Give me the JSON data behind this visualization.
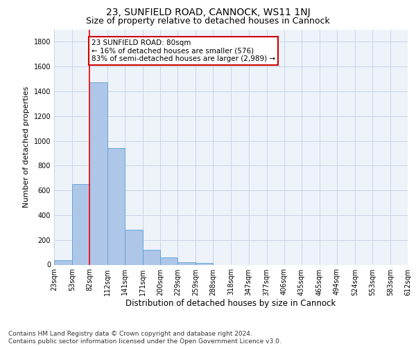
{
  "title": "23, SUNFIELD ROAD, CANNOCK, WS11 1NJ",
  "subtitle": "Size of property relative to detached houses in Cannock",
  "xlabel": "Distribution of detached houses by size in Cannock",
  "ylabel": "Number of detached properties",
  "footer_line1": "Contains HM Land Registry data © Crown copyright and database right 2024.",
  "footer_line2": "Contains public sector information licensed under the Open Government Licence v3.0.",
  "bar_edges": [
    23,
    53,
    82,
    112,
    141,
    171,
    200,
    229,
    259,
    288,
    318,
    347,
    377,
    406,
    435,
    465,
    494,
    524,
    553,
    583,
    612
  ],
  "bar_values": [
    35,
    650,
    1475,
    940,
    280,
    120,
    60,
    22,
    15,
    0,
    0,
    0,
    0,
    0,
    0,
    0,
    0,
    0,
    0,
    0
  ],
  "bar_color": "#aec6e8",
  "bar_edge_color": "#5a9fd4",
  "red_line_x": 82,
  "ylim": [
    0,
    1900
  ],
  "yticks": [
    0,
    200,
    400,
    600,
    800,
    1000,
    1200,
    1400,
    1600,
    1800
  ],
  "annotation_text": "23 SUNFIELD ROAD: 80sqm\n← 16% of detached houses are smaller (576)\n83% of semi-detached houses are larger (2,989) →",
  "annotation_box_color": "#ffffff",
  "annotation_box_edgecolor": "#cc0000",
  "background_color": "#eef3fa",
  "grid_color": "#c8d4e8",
  "title_fontsize": 10,
  "subtitle_fontsize": 9,
  "axis_label_fontsize": 8,
  "tick_fontsize": 7,
  "annotation_fontsize": 7.5,
  "footer_fontsize": 6.5
}
